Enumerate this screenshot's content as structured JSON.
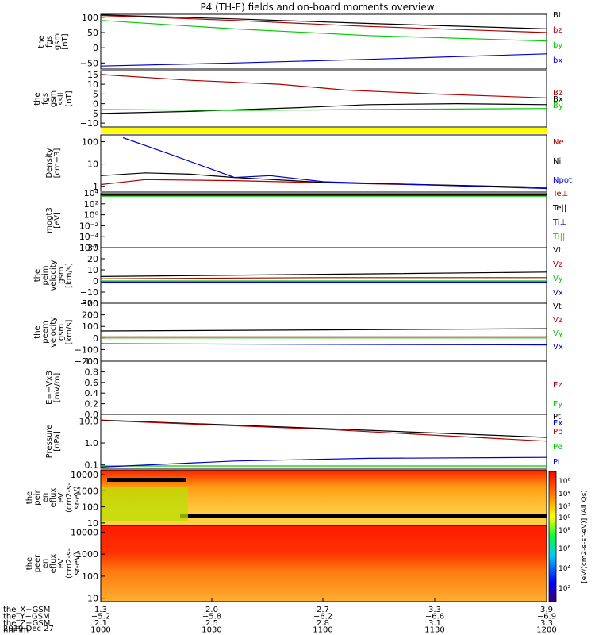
{
  "chart_data": {
    "type": "line",
    "title": "P4 (TH-E) fields and on-board moments overview",
    "panels": [
      {
        "id": "fgs-gsm",
        "ylabel_lines": [
          "the",
          "fgs",
          "gsm",
          "[nT]"
        ],
        "ylim": [
          -70,
          110
        ],
        "yticks": [
          {
            "v": 100,
            "t": "100"
          },
          {
            "v": 50,
            "t": "50"
          },
          {
            "v": 0,
            "t": "0"
          },
          {
            "v": -50,
            "t": "−50"
          }
        ],
        "series": [
          {
            "name": "Bt",
            "color": "#000000",
            "points": [
              [
                0,
                108
              ],
              [
                0.3,
                95
              ],
              [
                0.6,
                80
              ],
              [
                1,
                62
              ]
            ]
          },
          {
            "name": "bz",
            "color": "#b00000",
            "points": [
              [
                0,
                106
              ],
              [
                0.3,
                90
              ],
              [
                0.6,
                70
              ],
              [
                1,
                50
              ]
            ]
          },
          {
            "name": "by",
            "color": "#00cc00",
            "points": [
              [
                0,
                90
              ],
              [
                0.3,
                62
              ],
              [
                0.6,
                40
              ],
              [
                1,
                22
              ]
            ]
          },
          {
            "name": "bx",
            "color": "#0000cc",
            "points": [
              [
                0,
                -60
              ],
              [
                0.3,
                -50
              ],
              [
                0.6,
                -38
              ],
              [
                1,
                -20
              ]
            ]
          }
        ]
      },
      {
        "id": "fgs-gse",
        "ylabel_lines": [
          "the",
          "fgs",
          "gsm",
          "ssll",
          "[nT]"
        ],
        "ylim": [
          -12,
          17
        ],
        "yticks": [
          {
            "v": 15,
            "t": "15"
          },
          {
            "v": 10,
            "t": "10"
          },
          {
            "v": 5,
            "t": "5"
          },
          {
            "v": 0,
            "t": "0"
          },
          {
            "v": -5,
            "t": "−5"
          },
          {
            "v": -10,
            "t": "−10"
          }
        ],
        "series": [
          {
            "name": "Bz",
            "color": "#b00000",
            "points": [
              [
                0,
                15
              ],
              [
                0.2,
                12
              ],
              [
                0.4,
                10
              ],
              [
                0.55,
                7
              ],
              [
                0.75,
                5
              ],
              [
                1,
                3
              ]
            ]
          },
          {
            "name": "Bx",
            "color": "#000000",
            "points": [
              [
                0,
                -5
              ],
              [
                0.2,
                -4
              ],
              [
                0.45,
                -2
              ],
              [
                0.6,
                -0.5
              ],
              [
                0.8,
                0
              ],
              [
                1,
                -0.5
              ]
            ]
          },
          {
            "name": "By",
            "color": "#00cc00",
            "points": [
              [
                0,
                -3
              ],
              [
                0.3,
                -3.5
              ],
              [
                0.6,
                -3
              ],
              [
                1,
                -2.5
              ]
            ]
          }
        ]
      },
      {
        "id": "density",
        "ylabel_lines": [
          "Density",
          "[cm−3]"
        ],
        "log": true,
        "ylim": [
          0.6,
          200
        ],
        "yticks": [
          {
            "v": 100,
            "t": "100"
          },
          {
            "v": 10,
            "t": "10"
          },
          {
            "v": 1,
            "t": "1"
          }
        ],
        "series": [
          {
            "name": "Ne",
            "color": "#b00000",
            "points": [
              [
                0,
                1.2
              ],
              [
                0.1,
                2
              ],
              [
                0.3,
                1.8
              ],
              [
                0.6,
                1.3
              ],
              [
                1,
                0.9
              ]
            ]
          },
          {
            "name": "Ni",
            "color": "#000000",
            "points": [
              [
                0,
                3
              ],
              [
                0.1,
                4
              ],
              [
                0.2,
                3.5
              ],
              [
                0.3,
                2.5
              ],
              [
                0.5,
                1.5
              ],
              [
                1,
                0.9
              ]
            ]
          },
          {
            "name": "Npot",
            "color": "#0000cc",
            "points": [
              [
                0.05,
                150
              ],
              [
                0.15,
                30
              ],
              [
                0.3,
                2.5
              ],
              [
                0.38,
                3
              ],
              [
                0.5,
                1.6
              ],
              [
                1,
                0.8
              ]
            ]
          }
        ]
      },
      {
        "id": "temperature",
        "ylabel_lines": [
          "mogt3",
          "[eV]"
        ],
        "log": true,
        "ylim": [
          1e-06,
          10000
        ],
        "yticks": [
          {
            "v": 10000,
            "t": "10⁴"
          },
          {
            "v": 100,
            "t": "10²"
          },
          {
            "v": 1,
            "t": "10⁰"
          },
          {
            "v": 0.01,
            "t": "10⁻²"
          },
          {
            "v": 0.0001,
            "t": "10⁻⁴"
          },
          {
            "v": 1e-06,
            "t": "10⁻⁶"
          }
        ],
        "series": [
          {
            "name": "Te⊥",
            "color": "#b00000",
            "points": [
              [
                0,
                5000
              ],
              [
                1,
                5000
              ]
            ]
          },
          {
            "name": "Te||",
            "color": "#000000",
            "points": [
              [
                0,
                4000
              ],
              [
                1,
                4000
              ]
            ]
          },
          {
            "name": "Ti⊥",
            "color": "#0000cc",
            "points": [
              [
                0,
                3000
              ],
              [
                1,
                3000
              ]
            ]
          },
          {
            "name": "Ti||",
            "color": "#00cc00",
            "points": [
              [
                0,
                2500
              ],
              [
                1,
                2500
              ]
            ]
          }
        ]
      },
      {
        "id": "peim-velocity",
        "ylabel_lines": [
          "the",
          "peim",
          "velocity",
          "gsm",
          "[km/s]"
        ],
        "ylim": [
          -20,
          30
        ],
        "yticks": [
          {
            "v": 30,
            "t": "30"
          },
          {
            "v": 20,
            "t": "20"
          },
          {
            "v": 10,
            "t": "10"
          },
          {
            "v": 0,
            "t": "0"
          },
          {
            "v": -10,
            "t": "−10"
          },
          {
            "v": -20,
            "t": "−20"
          }
        ],
        "series": [
          {
            "name": "Vt",
            "color": "#000000",
            "points": [
              [
                0,
                4
              ],
              [
                0.5,
                6
              ],
              [
                1,
                8
              ]
            ]
          },
          {
            "name": "Vz",
            "color": "#b00000",
            "points": [
              [
                0,
                2
              ],
              [
                0.5,
                3
              ],
              [
                1,
                3
              ]
            ]
          },
          {
            "name": "Vy",
            "color": "#00cc00",
            "points": [
              [
                0,
                0
              ],
              [
                1,
                0
              ]
            ]
          },
          {
            "name": "Vx",
            "color": "#0000cc",
            "points": [
              [
                0,
                -1
              ],
              [
                1,
                -1
              ]
            ]
          }
        ]
      },
      {
        "id": "peem-velocity",
        "ylabel_lines": [
          "the",
          "peem",
          "velocity",
          "gsm",
          "[km/s]"
        ],
        "ylim": [
          -200,
          300
        ],
        "yticks": [
          {
            "v": 300,
            "t": "300"
          },
          {
            "v": 200,
            "t": "200"
          },
          {
            "v": 100,
            "t": "100"
          },
          {
            "v": 0,
            "t": "0"
          },
          {
            "v": -100,
            "t": "−100"
          },
          {
            "v": -200,
            "t": "−200"
          }
        ],
        "series": [
          {
            "name": "Vt",
            "color": "#000000",
            "points": [
              [
                0,
                60
              ],
              [
                0.5,
                70
              ],
              [
                1,
                80
              ]
            ]
          },
          {
            "name": "Vz",
            "color": "#b00000",
            "points": [
              [
                0,
                10
              ],
              [
                1,
                10
              ]
            ]
          },
          {
            "name": "Vy",
            "color": "#00cc00",
            "points": [
              [
                0,
                0
              ],
              [
                1,
                0
              ]
            ]
          },
          {
            "name": "Vx",
            "color": "#0000cc",
            "points": [
              [
                0,
                -50
              ],
              [
                1,
                -60
              ]
            ]
          }
        ]
      },
      {
        "id": "efield",
        "ylabel_lines": [
          "E=−VxB",
          "[mV/m]"
        ],
        "ylim": [
          0,
          1
        ],
        "yticks": [
          {
            "v": 1,
            "t": "1.0"
          },
          {
            "v": 0.8,
            "t": "0.8"
          },
          {
            "v": 0.6,
            "t": "0.6"
          },
          {
            "v": 0.4,
            "t": "0.4"
          },
          {
            "v": 0.2,
            "t": "0.2"
          },
          {
            "v": 0,
            "t": "0.0"
          }
        ],
        "series": [
          {
            "name": "Ez",
            "color": "#b00000",
            "points": []
          },
          {
            "name": "Ey",
            "color": "#00cc00",
            "points": []
          },
          {
            "name": "Ex",
            "color": "#0000cc",
            "points": []
          }
        ]
      },
      {
        "id": "pressure",
        "ylabel_lines": [
          "Pressure",
          "[nPa]"
        ],
        "log": true,
        "ylim": [
          0.07,
          20
        ],
        "yticks": [
          {
            "v": 10,
            "t": "10.0"
          },
          {
            "v": 1,
            "t": "1.0"
          },
          {
            "v": 0.1,
            "t": "0.1"
          }
        ],
        "series": [
          {
            "name": "Pt",
            "color": "#000000",
            "points": [
              [
                0,
                11
              ],
              [
                0.5,
                4.5
              ],
              [
                1,
                1.8
              ]
            ]
          },
          {
            "name": "Pb",
            "color": "#b00000",
            "points": [
              [
                0,
                10.5
              ],
              [
                0.5,
                4.2
              ],
              [
                1,
                1.2
              ]
            ]
          },
          {
            "name": "Pe",
            "color": "#00cc00",
            "points": [
              [
                0,
                0.09
              ],
              [
                1,
                0.09
              ]
            ]
          },
          {
            "name": "Pi",
            "color": "#0000cc",
            "points": [
              [
                0,
                0.08
              ],
              [
                0.3,
                0.15
              ],
              [
                0.6,
                0.2
              ],
              [
                1,
                0.22
              ]
            ]
          }
        ]
      },
      {
        "id": "peir-eflux",
        "kind": "spectrogram",
        "ylabel_lines": [
          "the",
          "peir",
          "en",
          "eflux",
          "eV",
          "(cm2-s-",
          "sr-eV)"
        ],
        "log": true,
        "ylim": [
          7,
          20000
        ],
        "yticks": [
          {
            "v": 10000,
            "t": "10000"
          },
          {
            "v": 1000,
            "t": "1000"
          },
          {
            "v": 100,
            "t": "100"
          },
          {
            "v": 10,
            "t": "10"
          }
        ]
      },
      {
        "id": "peer-eflux",
        "kind": "spectrogram",
        "ylabel_lines": [
          "the",
          "peer",
          "en",
          "eflux",
          "eV",
          "(cm2-s-",
          "sr-eV)"
        ],
        "log": true,
        "ylim": [
          7,
          20000
        ],
        "yticks": [
          {
            "v": 10000,
            "t": "10000"
          },
          {
            "v": 1000,
            "t": "1000"
          },
          {
            "v": 100,
            "t": "100"
          },
          {
            "v": 10,
            "t": "10"
          }
        ]
      }
    ],
    "colorbar": {
      "label": "[eV/(cm2-s-sr-eV)] (All Qs)",
      "ticks": [
        "10⁶",
        "10⁴",
        "10²",
        "10⁰",
        "10⁸",
        "10⁶",
        "10⁴",
        "10²"
      ]
    },
    "x_labels": {
      "rows": [
        {
          "label": "the_X−GSM",
          "values": [
            "1.3",
            "2.0",
            "2.7",
            "3.3",
            "3.9"
          ]
        },
        {
          "label": "the_Y−GSM",
          "values": [
            "−5.2",
            "−5.8",
            "−6.2",
            "−6.6",
            "−6.9"
          ]
        },
        {
          "label": "the_Z−GSM",
          "values": [
            "2.1",
            "2.5",
            "2.8",
            "3.1",
            "3.3"
          ]
        },
        {
          "label": "hhmm",
          "values": [
            "1000",
            "1030",
            "1100",
            "1130",
            "1200"
          ]
        }
      ],
      "date": "2019 Dec 27"
    }
  }
}
